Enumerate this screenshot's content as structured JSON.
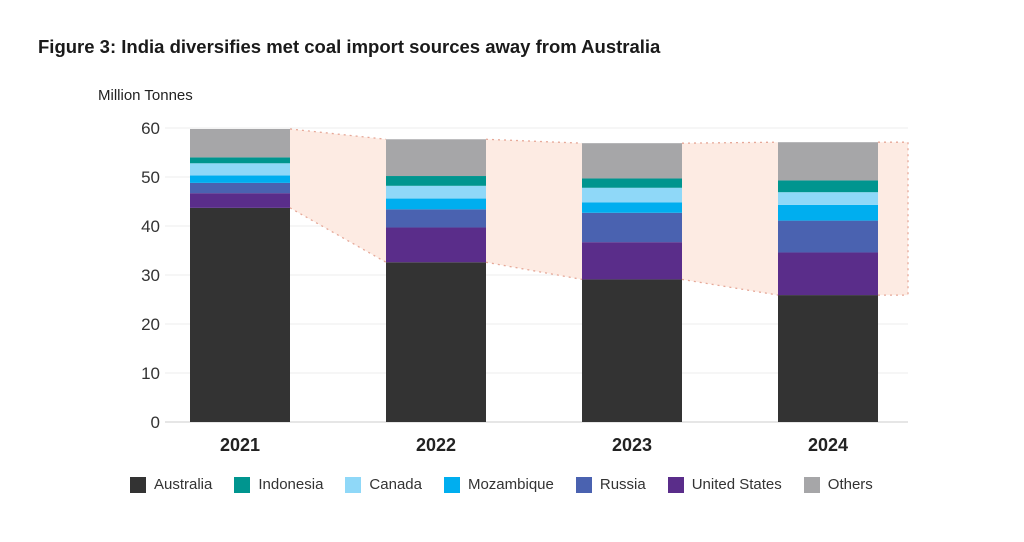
{
  "chart_data": {
    "type": "bar",
    "stacked": true,
    "title": "Figure 3: India diversifies met coal import sources away from Australia",
    "ylabel": "Million Tonnes",
    "xlabel": "",
    "ylim": [
      0,
      60
    ],
    "yticks": [
      0,
      10,
      20,
      30,
      40,
      50,
      60
    ],
    "grid": true,
    "legend": "bottom",
    "categories": [
      "2021",
      "2022",
      "2023",
      "2024"
    ],
    "series": [
      {
        "name": "Australia",
        "color": "#333333",
        "values": [
          43.7,
          32.6,
          29.1,
          25.9
        ]
      },
      {
        "name": "United States",
        "color": "#5a2d8a",
        "values": [
          3.0,
          7.1,
          7.6,
          8.7
        ]
      },
      {
        "name": "Russia",
        "color": "#4a62b0",
        "values": [
          2.1,
          3.7,
          6.0,
          6.5
        ]
      },
      {
        "name": "Mozambique",
        "color": "#00aeef",
        "values": [
          1.5,
          2.2,
          2.1,
          3.2
        ]
      },
      {
        "name": "Canada",
        "color": "#8fd8f8",
        "values": [
          2.5,
          2.6,
          3.0,
          2.6
        ]
      },
      {
        "name": "Indonesia",
        "color": "#00958f",
        "values": [
          1.2,
          2.0,
          1.9,
          2.4
        ]
      },
      {
        "name": "Others",
        "color": "#a6a6a8",
        "values": [
          5.8,
          7.5,
          7.2,
          7.8
        ]
      }
    ],
    "legend_order": [
      "Australia",
      "Indonesia",
      "Canada",
      "Mozambique",
      "Russia",
      "United States",
      "Others"
    ],
    "shaded_gap_color": "#fdebe3"
  }
}
